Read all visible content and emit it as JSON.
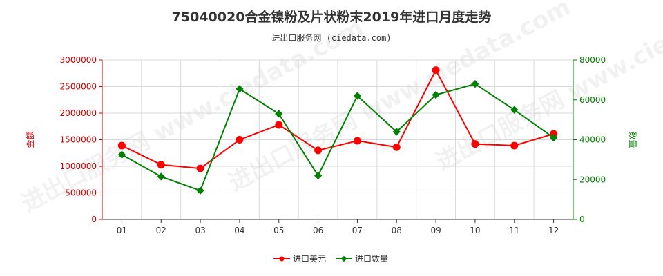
{
  "title": "75040020合金镍粉及片状粉末2019年进口月度走势",
  "subtitle": "进出口服务网 (ciedata.com)",
  "watermark": "进出口服务网 www.ciedata.com",
  "chart_data": {
    "type": "line",
    "categories": [
      "01",
      "02",
      "03",
      "04",
      "05",
      "06",
      "07",
      "08",
      "09",
      "10",
      "11",
      "12"
    ],
    "series": [
      {
        "name": "进口美元",
        "axis": "left",
        "color": "#ff0000",
        "values": [
          1390000,
          1030000,
          960000,
          1500000,
          1780000,
          1300000,
          1480000,
          1360000,
          2810000,
          1420000,
          1390000,
          1610000
        ]
      },
      {
        "name": "进口数量",
        "axis": "right",
        "color": "#008000",
        "values": [
          32500,
          21500,
          14500,
          65500,
          53000,
          22000,
          62000,
          44000,
          62500,
          68000,
          55000,
          41000
        ]
      }
    ],
    "yleft": {
      "label": "金额",
      "lim": [
        0,
        3000000
      ],
      "ticks": [
        "0",
        "500000",
        "1000000",
        "1500000",
        "2000000",
        "2500000",
        "3000000"
      ],
      "color": "#cc0000"
    },
    "yright": {
      "label": "数量",
      "lim": [
        0,
        80000
      ],
      "ticks": [
        "0",
        "20000",
        "40000",
        "60000",
        "80000"
      ],
      "color": "#008000"
    },
    "grid": true,
    "legend_position": "bottom"
  }
}
